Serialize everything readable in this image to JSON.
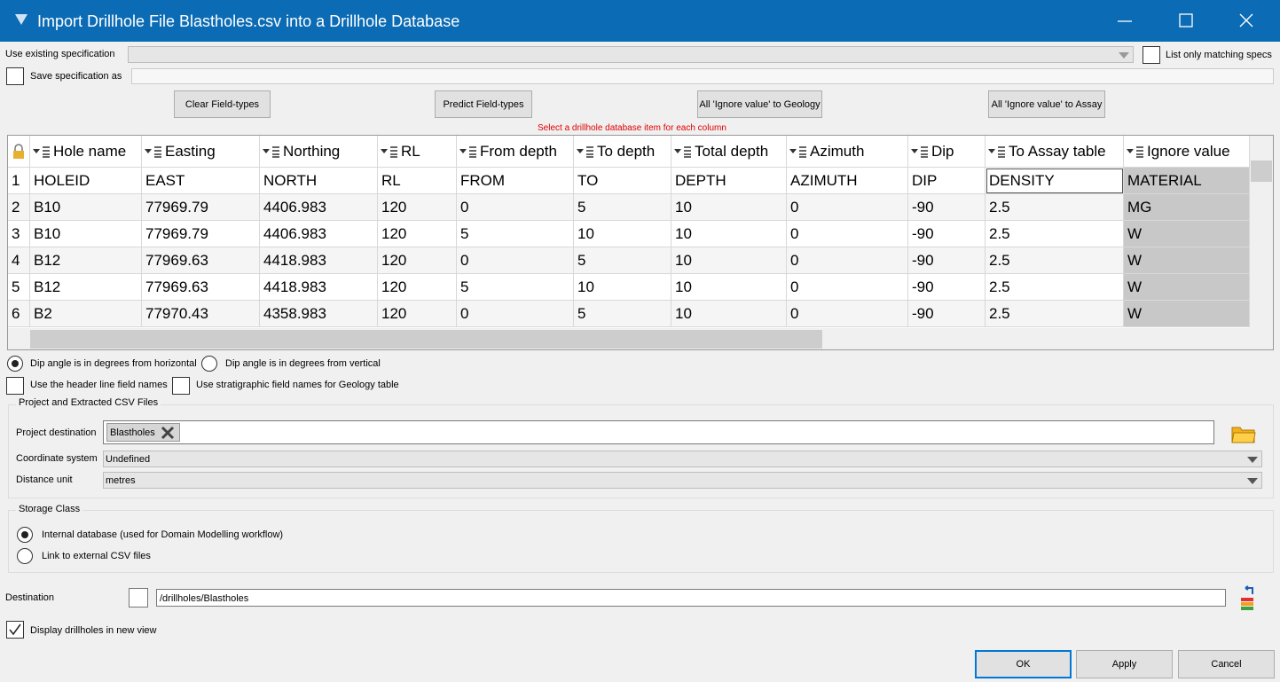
{
  "window": {
    "title": "Import Drillhole File Blastholes.csv into a Drillhole Database"
  },
  "spec": {
    "use_existing_label": "Use existing specification",
    "list_matching_label": "List only matching specs",
    "save_as_label": "Save specification as"
  },
  "buttons": {
    "clear": "Clear Field-types",
    "predict": "Predict Field-types",
    "ignore_geology": "All 'Ignore value' to Geology",
    "ignore_assay": "All 'Ignore value' to Assay"
  },
  "hint": "Select a drillhole database item for each column",
  "table": {
    "columns": [
      "Hole name",
      "Easting",
      "Northing",
      "RL",
      "From depth",
      "To depth",
      "Total depth",
      "Azimuth",
      "Dip",
      "To Assay table",
      "Ignore value"
    ],
    "rows": [
      [
        "1",
        "HOLEID",
        "EAST",
        "NORTH",
        "RL",
        "FROM",
        "TO",
        "DEPTH",
        "AZIMUTH",
        "DIP",
        "DENSITY",
        "MATERIAL"
      ],
      [
        "2",
        "B10",
        "77969.79",
        "4406.983",
        "120",
        "0",
        "5",
        "10",
        "0",
        "-90",
        "2.5",
        "MG"
      ],
      [
        "3",
        "B10",
        "77969.79",
        "4406.983",
        "120",
        "5",
        "10",
        "10",
        "0",
        "-90",
        "2.5",
        "W"
      ],
      [
        "4",
        "B12",
        "77969.63",
        "4418.983",
        "120",
        "0",
        "5",
        "10",
        "0",
        "-90",
        "2.5",
        "W"
      ],
      [
        "5",
        "B12",
        "77969.63",
        "4418.983",
        "120",
        "5",
        "10",
        "10",
        "0",
        "-90",
        "2.5",
        "W"
      ],
      [
        "6",
        "B2",
        "77970.43",
        "4358.983",
        "120",
        "0",
        "5",
        "10",
        "0",
        "-90",
        "2.5",
        "W"
      ]
    ]
  },
  "dip": {
    "horizontal": "Dip angle is in degrees from horizontal",
    "vertical": "Dip angle is in degrees from vertical"
  },
  "options": {
    "header_names": "Use the header line field names",
    "stratigraphic": "Use stratigraphic field names for Geology table"
  },
  "project": {
    "title": "Project and Extracted CSV Files",
    "destination_label": "Project destination",
    "destination_tag": "Blastholes",
    "coordinate_label": "Coordinate system",
    "coordinate_value": "Undefined",
    "unit_label": "Distance unit",
    "unit_value": "metres"
  },
  "storage": {
    "title": "Storage Class",
    "internal": "Internal database (used for Domain Modelling workflow)",
    "external": "Link to external CSV files"
  },
  "destination": {
    "label": "Destination",
    "value": "/drillholes/Blastholes"
  },
  "display_label": "Display drillholes in new view",
  "footer": {
    "ok": "OK",
    "apply": "Apply",
    "cancel": "Cancel"
  }
}
